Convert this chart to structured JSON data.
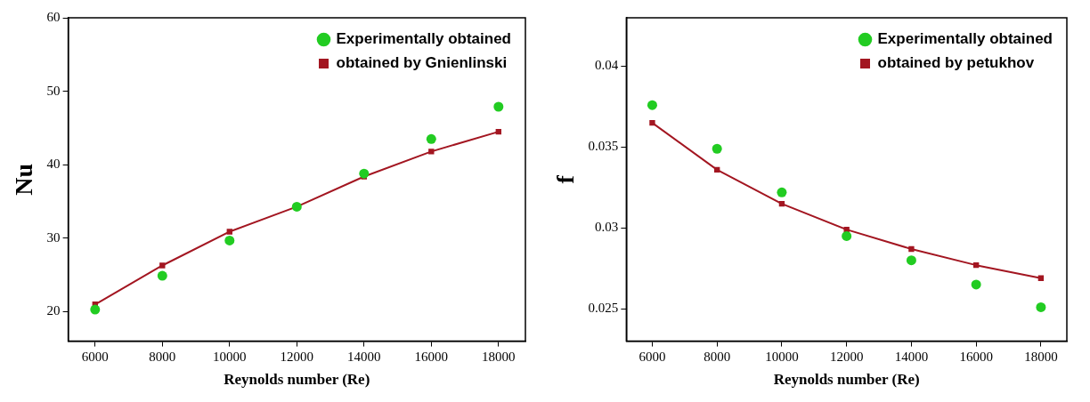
{
  "chart_data": [
    {
      "type": "line",
      "xlabel": "Reynolds number (Re)",
      "ylabel": "Nu",
      "x": [
        6000,
        8000,
        10000,
        12000,
        14000,
        16000,
        18000
      ],
      "xlim": [
        5200,
        18800
      ],
      "xticks": [
        6000,
        8000,
        10000,
        12000,
        14000,
        16000,
        18000
      ],
      "ylim": [
        16,
        60
      ],
      "yticks": [
        20,
        30,
        40,
        50,
        60
      ],
      "legend": "top right",
      "series": [
        {
          "name": "obtained by Gnienlinski",
          "type": "line",
          "marker": "square",
          "color": "#a31621",
          "values": [
            21.0,
            26.3,
            30.9,
            34.3,
            38.4,
            41.8,
            44.5
          ]
        },
        {
          "name": "Experimentally obtained",
          "type": "scatter",
          "marker": "circle",
          "color": "#22cc22",
          "values": [
            20.3,
            24.9,
            29.7,
            34.3,
            38.8,
            43.5,
            47.9
          ]
        }
      ]
    },
    {
      "type": "line",
      "xlabel": "Reynolds number (Re)",
      "ylabel": "f",
      "x": [
        6000,
        8000,
        10000,
        12000,
        14000,
        16000,
        18000
      ],
      "xlim": [
        5200,
        18800
      ],
      "xticks": [
        6000,
        8000,
        10000,
        12000,
        14000,
        16000,
        18000
      ],
      "ylim": [
        0.023,
        0.043
      ],
      "yticks": [
        0.025,
        0.03,
        0.035,
        0.04
      ],
      "legend": "top right",
      "series": [
        {
          "name": "obtained by petukhov",
          "type": "line",
          "marker": "square",
          "color": "#a31621",
          "values": [
            0.0365,
            0.0336,
            0.0315,
            0.0299,
            0.0287,
            0.0277,
            0.0269
          ]
        },
        {
          "name": "Experimentally obtained",
          "type": "scatter",
          "marker": "circle",
          "color": "#22cc22",
          "values": [
            0.0376,
            0.0349,
            0.0322,
            0.0295,
            0.028,
            0.0265,
            0.0251
          ]
        }
      ]
    }
  ]
}
